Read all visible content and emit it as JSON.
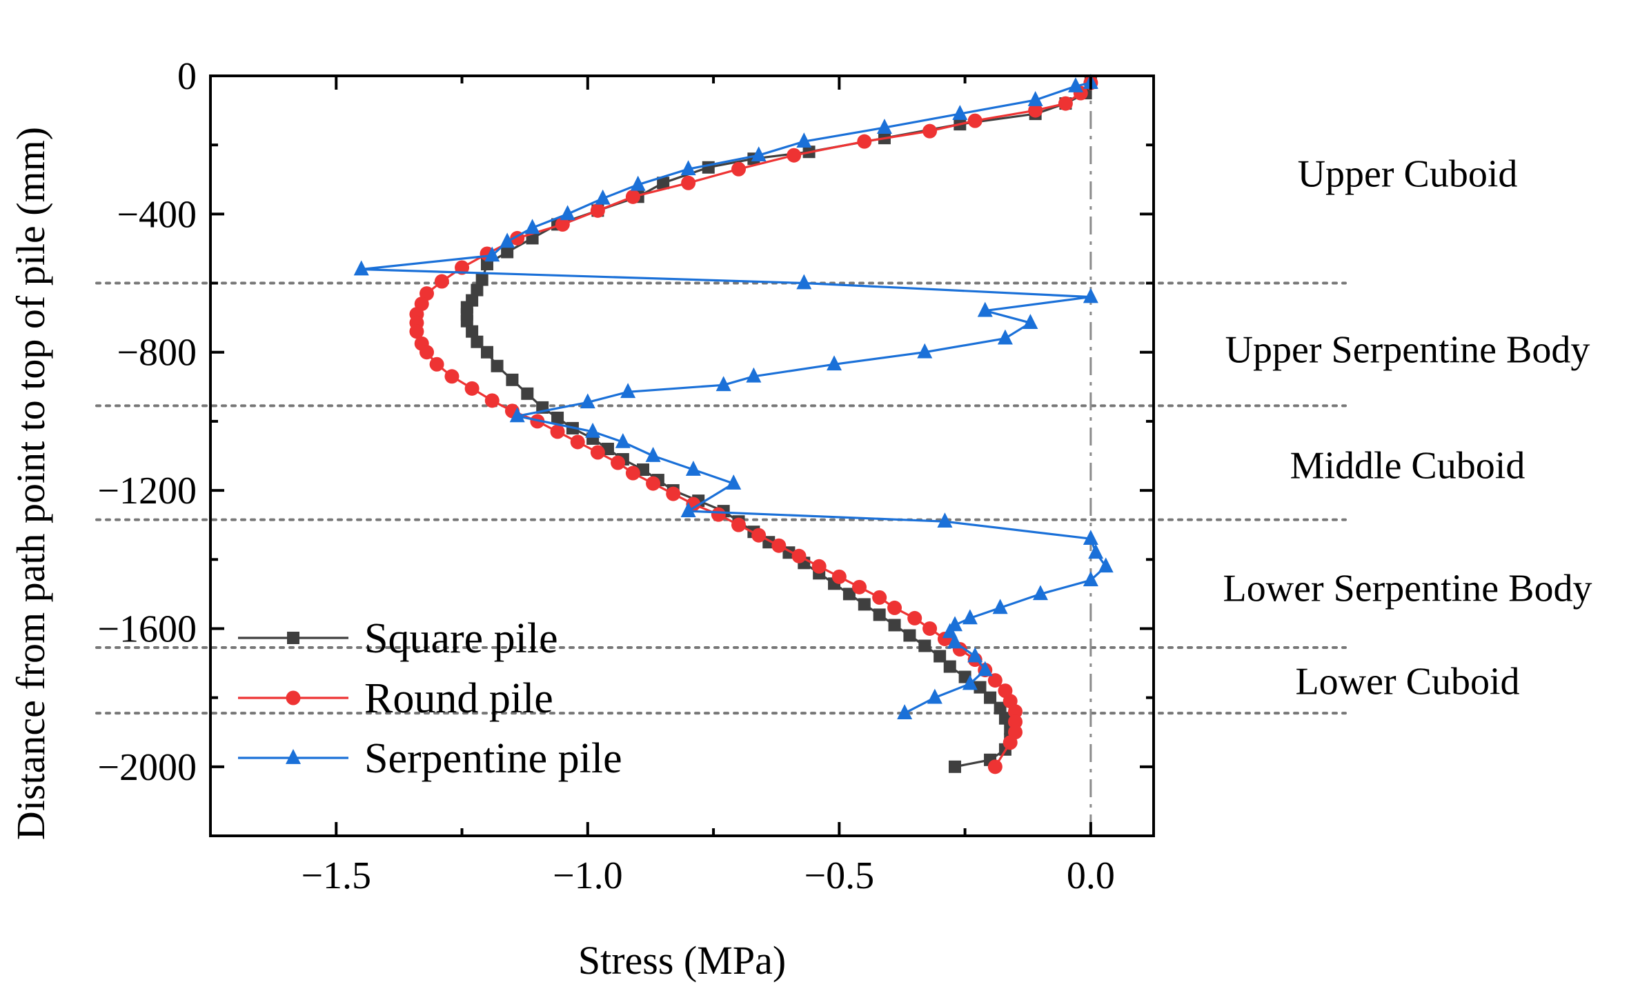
{
  "chart_data": {
    "type": "line",
    "title": "",
    "xlabel": "Stress (MPa)",
    "ylabel": "Distance from path point to top of pile (mm)",
    "xlim": [
      -1.75,
      0.125
    ],
    "ylim": [
      -2200,
      0
    ],
    "xticks": [
      -1.5,
      -1.0,
      -0.5,
      0.0
    ],
    "xtick_labels": [
      "−1.5",
      "−1.0",
      "−0.5",
      "0.0"
    ],
    "yticks": [
      0,
      -400,
      -800,
      -1200,
      -1600,
      -2000
    ],
    "ytick_labels": [
      "0",
      "−400",
      "−800",
      "−1200",
      "−1600",
      "−2000"
    ],
    "grid": false,
    "legend_position": "bottom-left",
    "zero_reference_line_x": 0.0,
    "region_boundaries_y": [
      -600,
      -955,
      -1285,
      -1655,
      -1845
    ],
    "region_labels": [
      {
        "text": "Upper Cuboid",
        "y": -280
      },
      {
        "text": "Upper Serpentine Body",
        "y": -790
      },
      {
        "text": "Middle Cuboid",
        "y": -1125
      },
      {
        "text": "Lower Serpentine Body",
        "y": -1480
      },
      {
        "text": "Lower Cuboid",
        "y": -1750
      }
    ],
    "series": [
      {
        "name": "Square pile",
        "color": "#3f3f3f",
        "marker": "square",
        "x": [
          0.0,
          -0.01,
          -0.05,
          -0.11,
          -0.26,
          -0.41,
          -0.56,
          -0.67,
          -0.76,
          -0.85,
          -0.9,
          -0.98,
          -1.06,
          -1.11,
          -1.16,
          -1.2,
          -1.21,
          -1.22,
          -1.23,
          -1.24,
          -1.24,
          -1.24,
          -1.23,
          -1.22,
          -1.2,
          -1.18,
          -1.15,
          -1.12,
          -1.09,
          -1.06,
          -1.03,
          -0.99,
          -0.96,
          -0.93,
          -0.89,
          -0.86,
          -0.83,
          -0.78,
          -0.73,
          -0.7,
          -0.67,
          -0.64,
          -0.6,
          -0.57,
          -0.54,
          -0.51,
          -0.48,
          -0.45,
          -0.42,
          -0.39,
          -0.36,
          -0.33,
          -0.3,
          -0.28,
          -0.25,
          -0.22,
          -0.2,
          -0.18,
          -0.17,
          -0.16,
          -0.16,
          -0.17,
          -0.2,
          -0.27
        ],
        "y": [
          -20,
          -50,
          -80,
          -110,
          -140,
          -180,
          -220,
          -240,
          -265,
          -310,
          -350,
          -390,
          -430,
          -470,
          -510,
          -545,
          -590,
          -620,
          -650,
          -670,
          -690,
          -710,
          -740,
          -770,
          -800,
          -840,
          -880,
          -920,
          -960,
          -990,
          -1020,
          -1050,
          -1080,
          -1110,
          -1140,
          -1170,
          -1200,
          -1230,
          -1260,
          -1290,
          -1320,
          -1350,
          -1380,
          -1410,
          -1440,
          -1470,
          -1500,
          -1530,
          -1560,
          -1590,
          -1620,
          -1650,
          -1680,
          -1710,
          -1740,
          -1770,
          -1800,
          -1830,
          -1860,
          -1890,
          -1920,
          -1950,
          -1980,
          -2000
        ]
      },
      {
        "name": "Round pile",
        "color": "#ee3333",
        "marker": "circle",
        "x": [
          0.0,
          -0.02,
          -0.05,
          -0.11,
          -0.23,
          -0.32,
          -0.45,
          -0.59,
          -0.7,
          -0.8,
          -0.91,
          -0.98,
          -1.05,
          -1.14,
          -1.2,
          -1.25,
          -1.29,
          -1.32,
          -1.33,
          -1.34,
          -1.34,
          -1.34,
          -1.33,
          -1.32,
          -1.3,
          -1.27,
          -1.23,
          -1.19,
          -1.15,
          -1.1,
          -1.06,
          -1.02,
          -0.98,
          -0.94,
          -0.91,
          -0.87,
          -0.83,
          -0.79,
          -0.74,
          -0.7,
          -0.66,
          -0.62,
          -0.58,
          -0.54,
          -0.5,
          -0.46,
          -0.42,
          -0.39,
          -0.35,
          -0.32,
          -0.29,
          -0.26,
          -0.23,
          -0.21,
          -0.19,
          -0.17,
          -0.16,
          -0.15,
          -0.15,
          -0.15,
          -0.16,
          -0.19
        ],
        "y": [
          -20,
          -50,
          -80,
          -100,
          -130,
          -160,
          -190,
          -230,
          -270,
          -310,
          -350,
          -390,
          -430,
          -470,
          -515,
          -555,
          -595,
          -630,
          -660,
          -690,
          -715,
          -740,
          -775,
          -800,
          -835,
          -870,
          -905,
          -940,
          -970,
          -1000,
          -1030,
          -1060,
          -1090,
          -1120,
          -1150,
          -1180,
          -1210,
          -1240,
          -1270,
          -1300,
          -1330,
          -1360,
          -1390,
          -1420,
          -1450,
          -1480,
          -1510,
          -1540,
          -1570,
          -1600,
          -1630,
          -1660,
          -1690,
          -1720,
          -1750,
          -1780,
          -1810,
          -1840,
          -1870,
          -1900,
          -1930,
          -2000
        ]
      },
      {
        "name": "Serpentine pile",
        "color": "#1a70d8",
        "marker": "triangle",
        "x": [
          0.0,
          -0.03,
          -0.11,
          -0.26,
          -0.41,
          -0.57,
          -0.66,
          -0.8,
          -0.9,
          -0.97,
          -1.04,
          -1.11,
          -1.16,
          -1.19,
          -1.45,
          -0.57,
          0.0,
          -0.21,
          -0.12,
          -0.17,
          -0.33,
          -0.51,
          -0.67,
          -0.73,
          -0.92,
          -1.0,
          -1.14,
          -0.99,
          -0.93,
          -0.87,
          -0.79,
          -0.71,
          -0.8,
          -0.29,
          0.0,
          0.01,
          0.03,
          0.0,
          -0.1,
          -0.18,
          -0.24,
          -0.27,
          -0.28,
          -0.27,
          -0.23,
          -0.21,
          -0.24,
          -0.31,
          -0.37
        ],
        "y": [
          -20,
          -30,
          -70,
          -110,
          -150,
          -190,
          -230,
          -270,
          -315,
          -355,
          -400,
          -440,
          -480,
          -520,
          -560,
          -600,
          -640,
          -680,
          -715,
          -760,
          -800,
          -835,
          -870,
          -895,
          -915,
          -945,
          -985,
          -1030,
          -1060,
          -1100,
          -1140,
          -1180,
          -1260,
          -1290,
          -1340,
          -1380,
          -1420,
          -1460,
          -1500,
          -1540,
          -1570,
          -1590,
          -1610,
          -1640,
          -1680,
          -1720,
          -1760,
          -1800,
          -1845
        ]
      }
    ]
  }
}
